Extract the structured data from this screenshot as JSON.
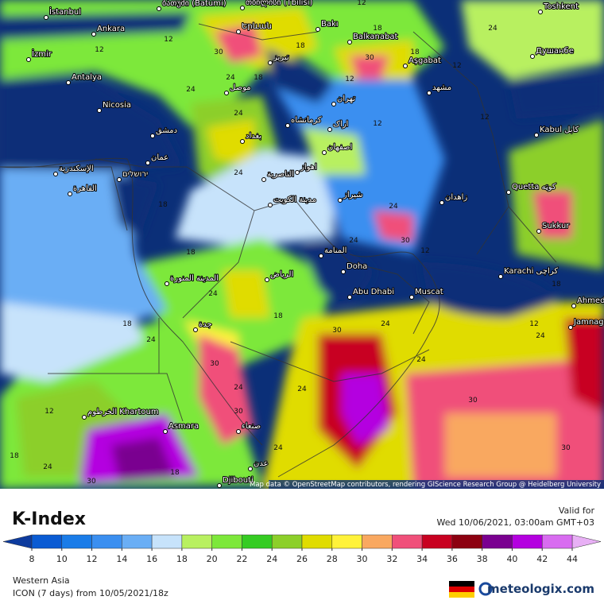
{
  "map": {
    "attribution": "Map data © OpenStreetMap contributors, rendering GIScience Research Group @ Heidelberg University",
    "places": [
      "İstanbul",
      "Ankara",
      "İzmir",
      "Antalya",
      "Nicosia",
      "دمشق",
      "عمان",
      "ירושלים",
      "الإسكندرية",
      "القاهرة",
      "ბათუმი (Batumi)",
      "თბილისი (Tbilisi)",
      "Երևան",
      "Bakı",
      "Balkanabat",
      "Aşgabat",
      "Toshkent",
      "Душанбе",
      "مشهد",
      "تهران",
      "تبریز",
      "موصل",
      "بغداد",
      "کرمانشاه",
      "اراک",
      "اصفهان",
      "اهواز",
      "الناصرية",
      "مدينة الكويت",
      "شیراز",
      "زاهدان",
      "Quetta کوټه",
      "Kabul کابل",
      "Sukkur",
      "Karachi کراچی",
      "Ahmed",
      "Jamnaga",
      "Doha",
      "المنامة",
      "Abu Dhabi",
      "Muscat",
      "الرياض",
      "المدينة المنورة",
      "جدة",
      "صنعاء",
      "Asmara",
      "الخرطوم Khartoum",
      "Djibouti",
      "عدن"
    ],
    "contour_labels": [
      12,
      30,
      18,
      24,
      12,
      18,
      24,
      12,
      12,
      30,
      18,
      12,
      12,
      18,
      24,
      24,
      12,
      18,
      24,
      30,
      18,
      24,
      12,
      18,
      24,
      30,
      24,
      24,
      18,
      12,
      24,
      30,
      24,
      18,
      24,
      30,
      30,
      18,
      24,
      12,
      24,
      30,
      18,
      24,
      30,
      24
    ]
  },
  "legend": {
    "title": "K-Index",
    "valid_label": "Valid for",
    "valid_time": "Wed 10/06/2021, 03:00am GMT+03",
    "ticks": [
      8,
      10,
      12,
      14,
      16,
      18,
      20,
      22,
      24,
      26,
      28,
      30,
      32,
      34,
      36,
      38,
      40,
      42,
      44
    ],
    "colors": [
      "#0d3b9e",
      "#0a5bd3",
      "#1a7ce8",
      "#3b8ff0",
      "#6aaef5",
      "#c7e3fb",
      "#b8f060",
      "#7de83a",
      "#35cc22",
      "#8ccf2a",
      "#e0dc00",
      "#fff23a",
      "#f9a860",
      "#f0507a",
      "#c80020",
      "#8c0010",
      "#7a0090",
      "#b400e0",
      "#d86cf0",
      "#e8b0f5"
    ]
  },
  "footer": {
    "region": "Western Asia",
    "model": "ICON (7 days) from  10/05/2021/18z",
    "brand": "meteologix.com"
  }
}
